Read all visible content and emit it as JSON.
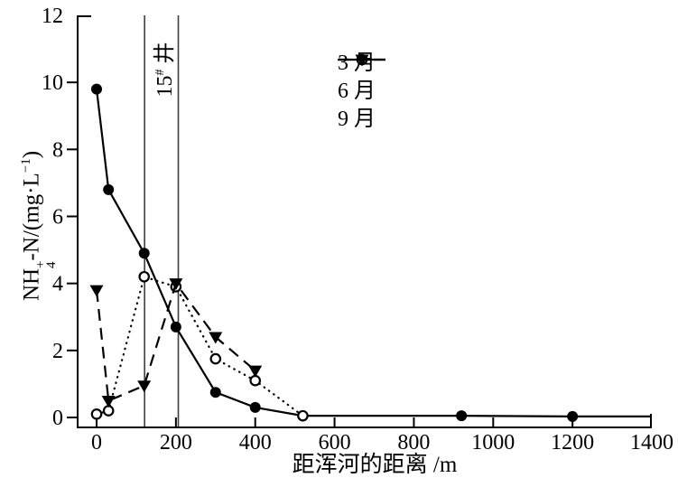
{
  "figure": {
    "y_title": {
      "base": "NH",
      "stack_top": "+",
      "stack_bottom": "4",
      "mid": "-N/(mg·L",
      "exp": "−1",
      "end": ")"
    },
    "x_title": "距浑河的距离 /m",
    "well_label": {
      "base": "15",
      "sup": "#",
      "suffix": " 井"
    },
    "legend": {
      "items": [
        {
          "label": "3 月"
        },
        {
          "label": "6 月"
        },
        {
          "label": "9 月"
        }
      ]
    },
    "colors": {
      "stroke": "#000000",
      "well_line": "#3d3d3d",
      "background": "#ffffff"
    }
  },
  "chart_data": {
    "type": "line",
    "title": "",
    "xlabel": "距浑河的距离 /m",
    "ylabel": "NH4+-N/(mg·L−1)",
    "xlim": [
      -50,
      1400
    ],
    "ylim": [
      0,
      12
    ],
    "x_ticks": [
      0,
      200,
      400,
      600,
      800,
      1000,
      1200,
      1400
    ],
    "y_ticks": [
      0,
      2,
      4,
      6,
      8,
      10,
      12
    ],
    "grid": false,
    "legend_position": "upper-middle",
    "annotations": {
      "well_lines_x": [
        121,
        206
      ],
      "well_label": "15#井"
    },
    "series": [
      {
        "name": "3 月",
        "line_style": "solid",
        "marker": "circle-filled",
        "points": [
          [
            0,
            9.8
          ],
          [
            30,
            6.8
          ],
          [
            120,
            4.9
          ],
          [
            200,
            2.7
          ],
          [
            300,
            0.75
          ],
          [
            400,
            0.3
          ],
          [
            520,
            0.05
          ],
          [
            920,
            0.05
          ],
          [
            1200,
            0.03
          ]
        ],
        "line_extra_points": [
          [
            1400,
            0.03
          ]
        ]
      },
      {
        "name": "6 月",
        "line_style": "dotted",
        "marker": "circle-open",
        "points": [
          [
            0,
            0.1
          ],
          [
            30,
            0.2
          ],
          [
            120,
            4.2
          ],
          [
            200,
            3.9
          ],
          [
            300,
            1.75
          ],
          [
            400,
            1.1
          ],
          [
            520,
            0.05
          ]
        ]
      },
      {
        "name": "9 月",
        "line_style": "dashed",
        "marker": "triangle-down-filled",
        "points": [
          [
            0,
            3.8
          ],
          [
            30,
            0.5
          ],
          [
            120,
            0.95
          ],
          [
            200,
            4.0
          ],
          [
            300,
            2.4
          ],
          [
            400,
            1.4
          ]
        ]
      }
    ]
  }
}
